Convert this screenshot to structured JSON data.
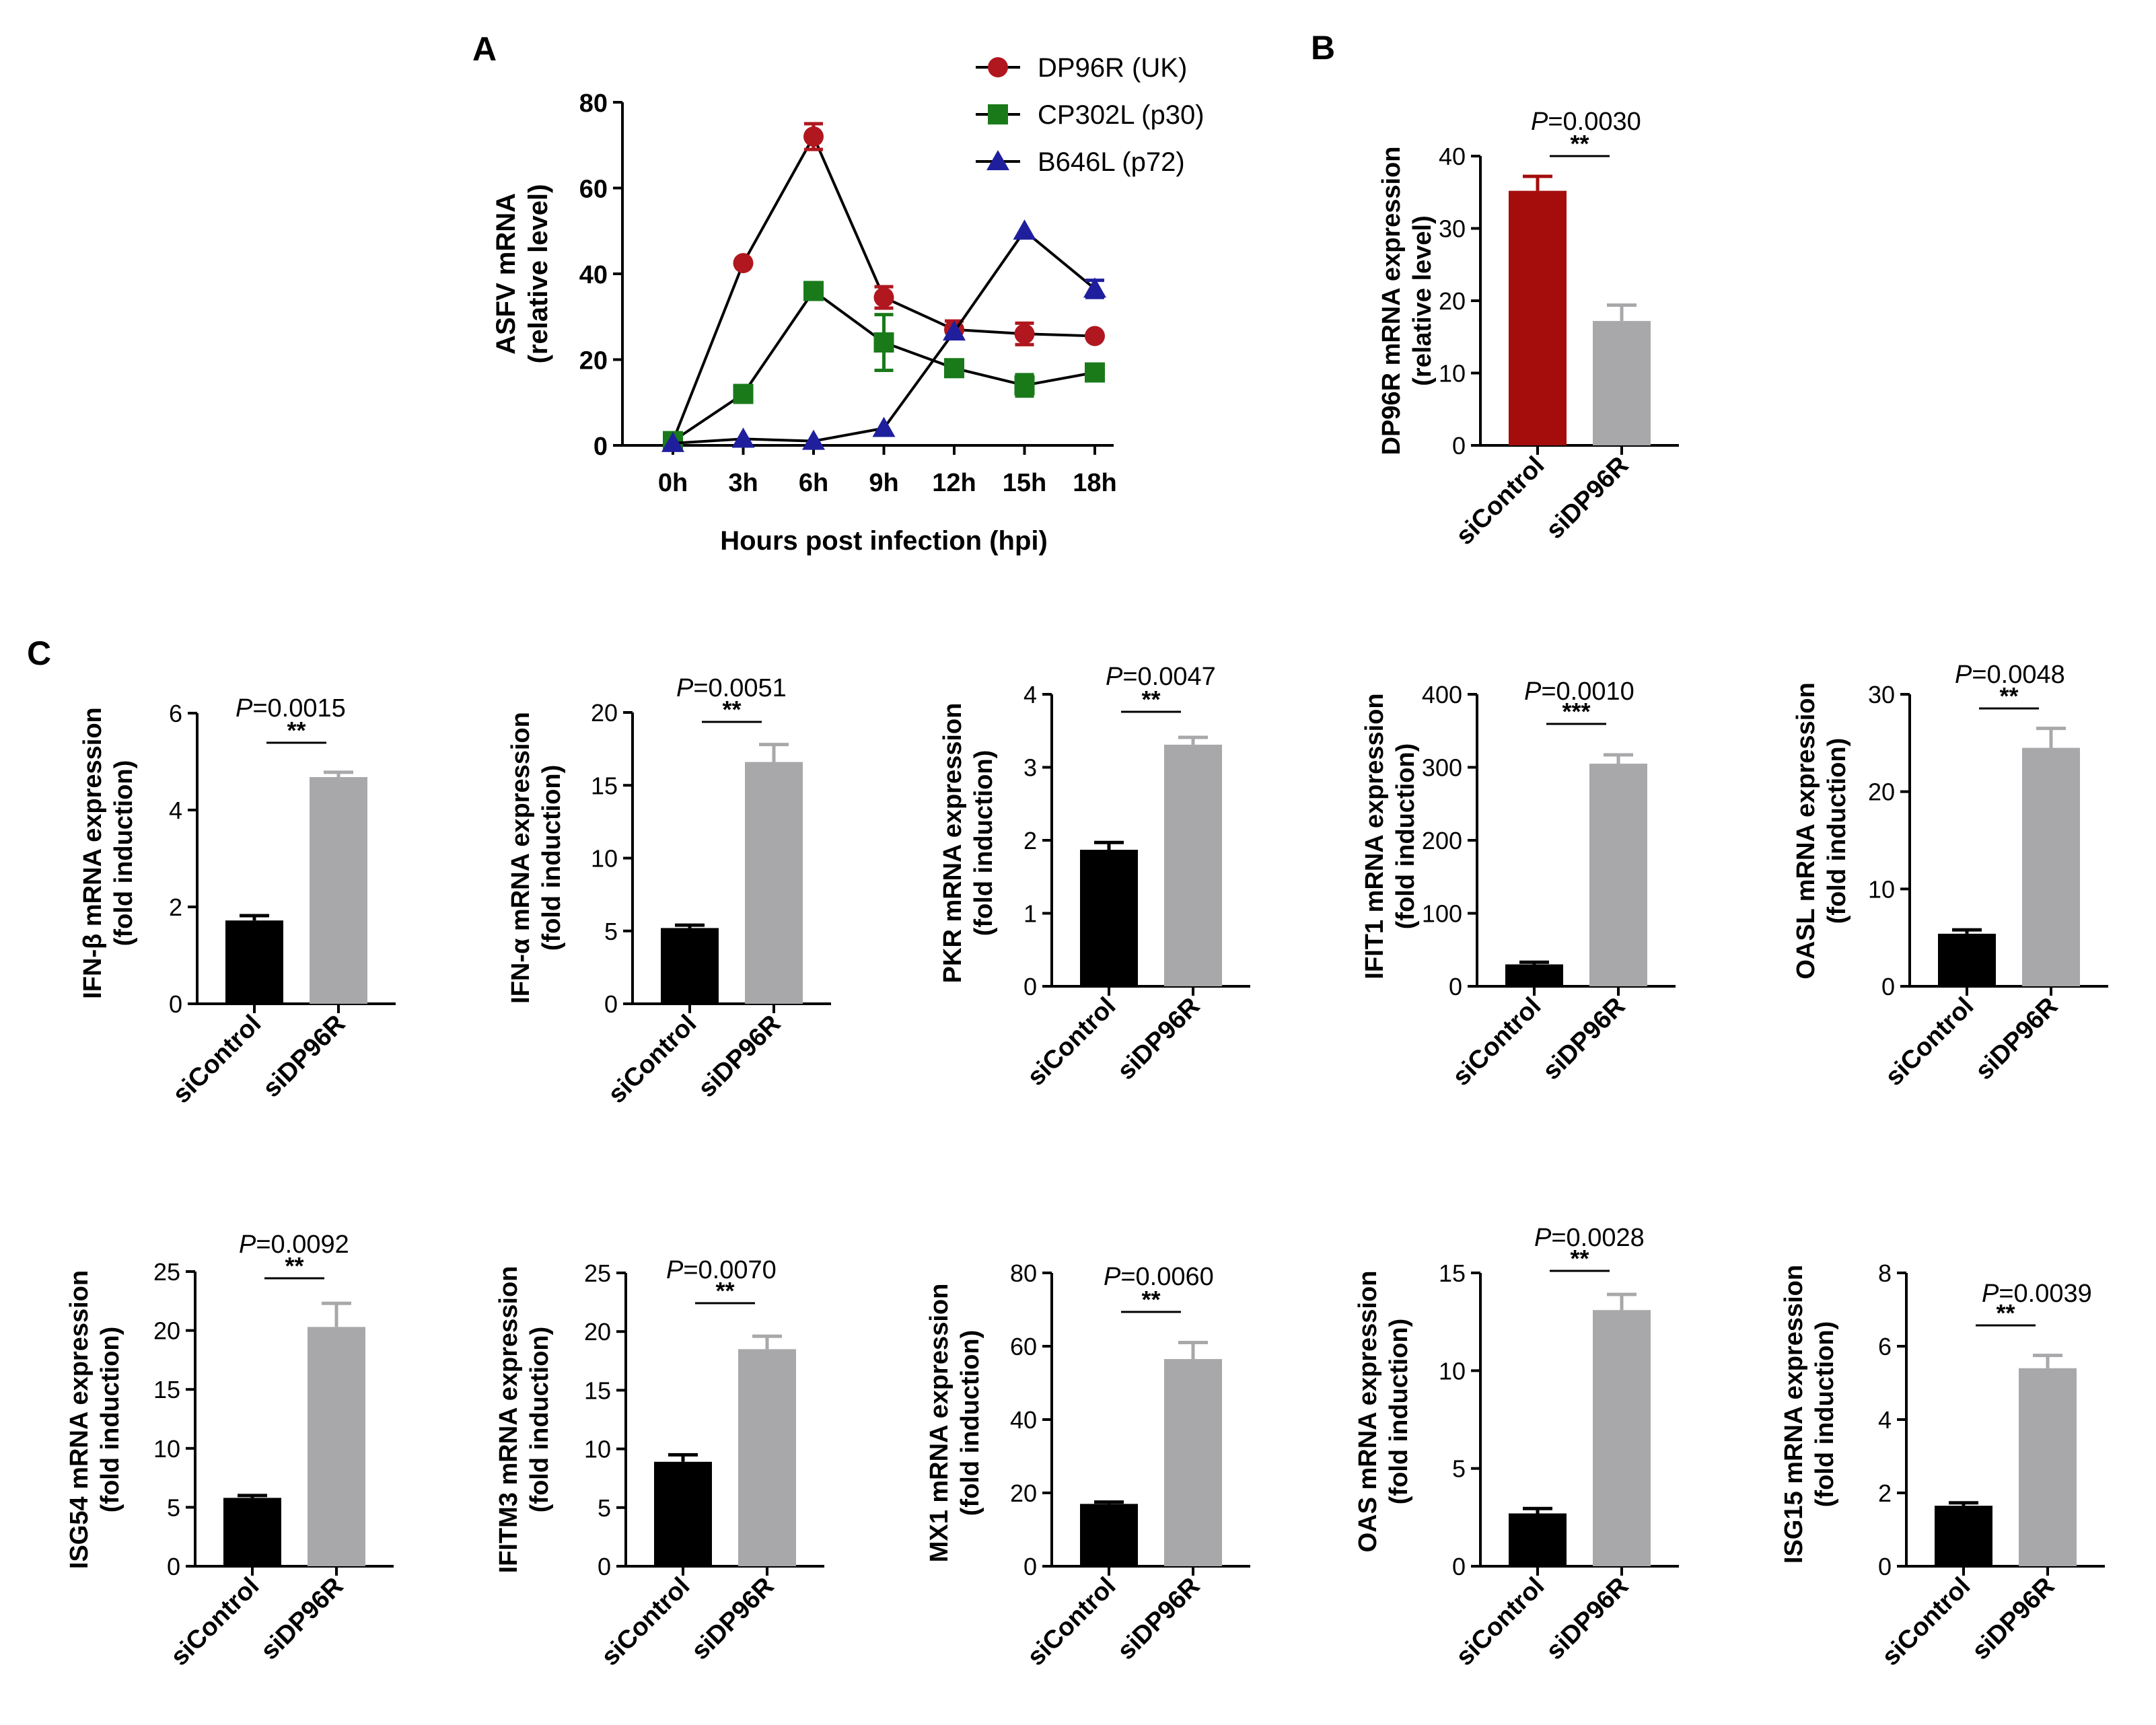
{
  "panel_labels": {
    "A": "A",
    "B": "B",
    "C": "C"
  },
  "chart_data": [
    {
      "id": "A",
      "type": "line",
      "title": "",
      "xlabel": "Hours post infection (hpi)",
      "ylabel_line1": "ASFV mRNA",
      "ylabel_line2": "(relative level)",
      "categories": [
        "0h",
        "3h",
        "6h",
        "9h",
        "12h",
        "15h",
        "18h"
      ],
      "ylim": [
        0,
        80
      ],
      "yticks": [
        0,
        20,
        40,
        60,
        80
      ],
      "legend_position": "top-right",
      "series": [
        {
          "name": "DP96R (UK)",
          "color": "#b0171f",
          "marker": "circle",
          "values": [
            1,
            42.5,
            72,
            34.5,
            27,
            26,
            25.5
          ],
          "errors": [
            0.5,
            1,
            3,
            2.5,
            2,
            2.5,
            1
          ]
        },
        {
          "name": "CP302L (p30)",
          "color": "#1a7a1a",
          "marker": "square",
          "values": [
            1,
            12,
            36,
            24,
            18,
            14,
            17
          ],
          "errors": [
            0.5,
            1,
            1,
            6.5,
            1,
            2.5,
            1
          ]
        },
        {
          "name": "B646L (p72)",
          "color": "#1f1f9e",
          "marker": "triangle",
          "values": [
            0.5,
            1.5,
            1,
            4,
            26.5,
            50,
            36.5
          ],
          "errors": [
            0.3,
            0.3,
            0.3,
            0.7,
            1.5,
            1.5,
            2
          ]
        }
      ]
    },
    {
      "id": "B",
      "type": "bar",
      "ylabel_line1": "DP96R mRNA expression",
      "ylabel_line2": "(relative level)",
      "categories": [
        "siControl",
        "siDP96R"
      ],
      "values": [
        35.2,
        17.2
      ],
      "errors": [
        2,
        2.2
      ],
      "colors": [
        "#a50d0d",
        "#a8a8ab"
      ],
      "ylim": [
        0,
        40
      ],
      "yticks": [
        0,
        10,
        20,
        30,
        40
      ],
      "p_prefix": "P",
      "p_value": "=0.0030",
      "significance": "**"
    },
    {
      "id": "C1",
      "type": "bar",
      "ylabel_line1": "IFN-β mRNA expression",
      "ylabel_line2": "(fold induction)",
      "categories": [
        "siControl",
        "siDP96R"
      ],
      "values": [
        1.72,
        4.68
      ],
      "errors": [
        0.1,
        0.1
      ],
      "colors": [
        "#000000",
        "#a8a8ab"
      ],
      "ylim": [
        0,
        6
      ],
      "yticks": [
        0,
        2,
        4,
        6
      ],
      "p_prefix": "P",
      "p_value": "=0.0015",
      "significance": "**"
    },
    {
      "id": "C2",
      "type": "bar",
      "ylabel_line1": "IFN-α mRNA expression",
      "ylabel_line2": "(fold induction)",
      "categories": [
        "siControl",
        "siDP96R"
      ],
      "values": [
        5.2,
        16.6
      ],
      "errors": [
        0.2,
        1.2
      ],
      "colors": [
        "#000000",
        "#a8a8ab"
      ],
      "ylim": [
        0,
        20
      ],
      "yticks": [
        0,
        5,
        10,
        15,
        20
      ],
      "p_prefix": "P",
      "p_value": "=0.0051",
      "significance": "**"
    },
    {
      "id": "C3",
      "type": "bar",
      "ylabel_line1": "PKR mRNA expression",
      "ylabel_line2": "(fold induction)",
      "categories": [
        "siControl",
        "siDP96R"
      ],
      "values": [
        1.87,
        3.31
      ],
      "errors": [
        0.1,
        0.1
      ],
      "colors": [
        "#000000",
        "#a8a8ab"
      ],
      "ylim": [
        0,
        4
      ],
      "yticks": [
        0,
        1,
        2,
        3,
        4
      ],
      "p_prefix": "P",
      "p_value": "=0.0047",
      "significance": "**"
    },
    {
      "id": "C4",
      "type": "bar",
      "ylabel_line1": "IFIT1 mRNA expression",
      "ylabel_line2": "(fold induction)",
      "categories": [
        "siControl",
        "siDP96R"
      ],
      "values": [
        30,
        305
      ],
      "errors": [
        3,
        12
      ],
      "colors": [
        "#000000",
        "#a8a8ab"
      ],
      "ylim": [
        0,
        400
      ],
      "yticks": [
        0,
        100,
        200,
        300,
        400
      ],
      "p_prefix": "P",
      "p_value": "=0.0010",
      "significance": "***"
    },
    {
      "id": "C5",
      "type": "bar",
      "ylabel_line1": "OASL mRNA expression",
      "ylabel_line2": "(fold induction)",
      "categories": [
        "siControl",
        "siDP96R"
      ],
      "values": [
        5.4,
        24.5
      ],
      "errors": [
        0.4,
        2
      ],
      "colors": [
        "#000000",
        "#a8a8ab"
      ],
      "ylim": [
        0,
        30
      ],
      "yticks": [
        0,
        10,
        20,
        30
      ],
      "p_prefix": "P",
      "p_value": "=0.0048",
      "significance": "**"
    },
    {
      "id": "C6",
      "type": "bar",
      "ylabel_line1": "ISG54 mRNA expression",
      "ylabel_line2": "(fold induction)",
      "categories": [
        "siControl",
        "siDP96R"
      ],
      "values": [
        5.8,
        20.3
      ],
      "errors": [
        0.2,
        2
      ],
      "colors": [
        "#000000",
        "#a8a8ab"
      ],
      "ylim": [
        0,
        25
      ],
      "yticks": [
        0,
        5,
        10,
        15,
        20,
        25
      ],
      "p_prefix": "P",
      "p_value": "=0.0092",
      "significance": "**"
    },
    {
      "id": "C7",
      "type": "bar",
      "ylabel_line1": "IFITM3 mRNA expression",
      "ylabel_line2": "(fold induction)",
      "categories": [
        "siControl",
        "siDP96R"
      ],
      "values": [
        8.9,
        18.5
      ],
      "errors": [
        0.6,
        1.1
      ],
      "colors": [
        "#000000",
        "#a8a8ab"
      ],
      "ylim": [
        0,
        25
      ],
      "yticks": [
        0,
        5,
        10,
        15,
        20,
        25
      ],
      "p_prefix": "P",
      "p_value": "=0.0070",
      "significance": "**"
    },
    {
      "id": "C8",
      "type": "bar",
      "ylabel_line1": "MX1 mRNA expression",
      "ylabel_line2": "(fold induction)",
      "categories": [
        "siControl",
        "siDP96R"
      ],
      "values": [
        17,
        56.5
      ],
      "errors": [
        0.5,
        4.5
      ],
      "colors": [
        "#000000",
        "#a8a8ab"
      ],
      "ylim": [
        0,
        80
      ],
      "yticks": [
        0,
        20,
        40,
        60,
        80
      ],
      "p_prefix": "P",
      "p_value": "=0.0060",
      "significance": "**"
    },
    {
      "id": "C9",
      "type": "bar",
      "ylabel_line1": "OAS mRNA expression",
      "ylabel_line2": "(fold induction)",
      "categories": [
        "siControl",
        "siDP96R"
      ],
      "values": [
        2.7,
        13.1
      ],
      "errors": [
        0.25,
        0.8
      ],
      "colors": [
        "#000000",
        "#a8a8ab"
      ],
      "ylim": [
        0,
        15
      ],
      "yticks": [
        0,
        5,
        10,
        15
      ],
      "p_prefix": "P",
      "p_value": "=0.0028",
      "significance": "**"
    },
    {
      "id": "C10",
      "type": "bar",
      "ylabel_line1": "ISG15 mRNA expression",
      "ylabel_line2": "(fold induction)",
      "categories": [
        "siControl",
        "siDP96R"
      ],
      "values": [
        1.65,
        5.4
      ],
      "errors": [
        0.08,
        0.35
      ],
      "colors": [
        "#000000",
        "#a8a8ab"
      ],
      "ylim": [
        0,
        8
      ],
      "yticks": [
        0,
        2,
        4,
        6,
        8
      ],
      "p_prefix": "P",
      "p_value": "=0.0039",
      "significance": "**"
    }
  ]
}
